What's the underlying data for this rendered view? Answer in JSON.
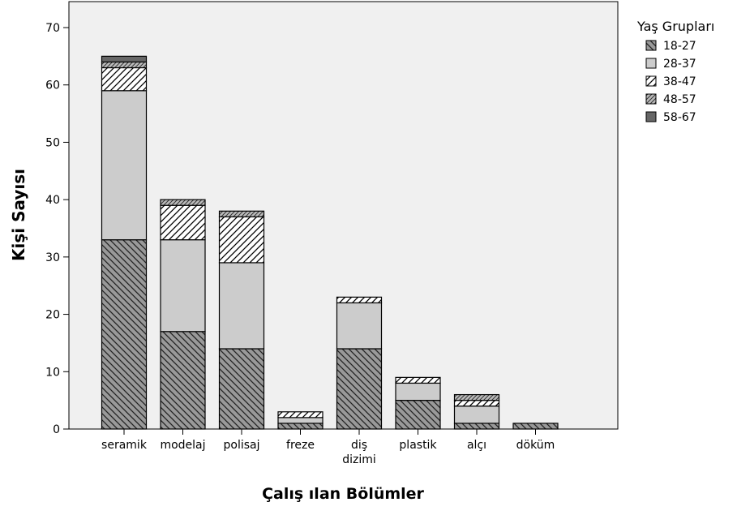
{
  "chart_data": {
    "type": "bar",
    "stacked": true,
    "title": "",
    "xlabel": "Çalış ılan Bölümler",
    "ylabel": "Kişi Sayısı",
    "ylim": [
      0,
      70
    ],
    "yticks": [
      0,
      10,
      20,
      30,
      40,
      50,
      60,
      70
    ],
    "grid": false,
    "legend_title": "Yaş Grupları",
    "legend_position": "right",
    "categories": [
      "seramik",
      "modelaj",
      "polisaj",
      "freze",
      "diş dizimi",
      "plastik",
      "alçı",
      "döküm"
    ],
    "series": [
      {
        "name": "18-27",
        "values": [
          33,
          17,
          14,
          1,
          14,
          5,
          1,
          1
        ]
      },
      {
        "name": "28-37",
        "values": [
          26,
          16,
          15,
          1,
          8,
          3,
          3,
          0
        ]
      },
      {
        "name": "38-47",
        "values": [
          4,
          6,
          8,
          1,
          1,
          1,
          1,
          0
        ]
      },
      {
        "name": "48-57",
        "values": [
          1,
          1,
          1,
          0,
          0,
          0,
          1,
          0
        ]
      },
      {
        "name": "58-67",
        "values": [
          1,
          0,
          0,
          0,
          0,
          0,
          0,
          0
        ]
      }
    ],
    "colors": {
      "plot_background": "#f0f0f0",
      "light_fill": "#cccccc",
      "dark_fill": "#666666",
      "medium_fill": "#999999"
    }
  }
}
